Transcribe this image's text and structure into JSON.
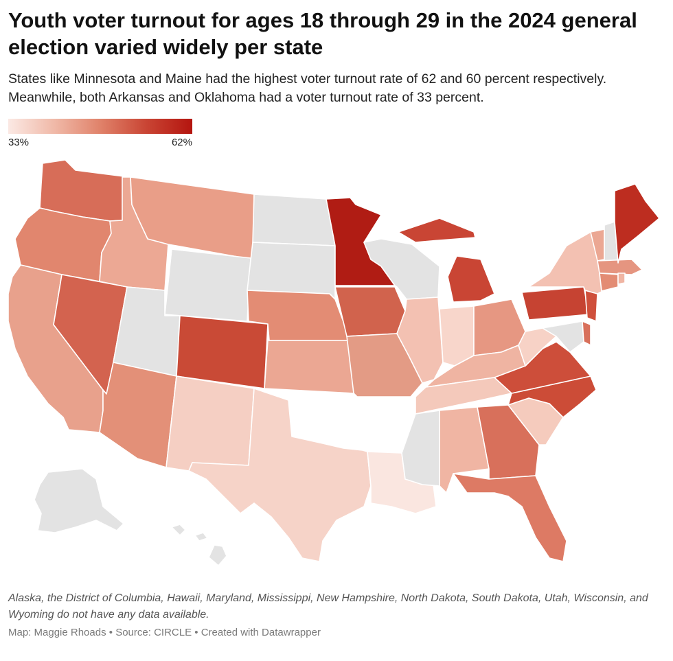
{
  "title": "Youth voter turnout for ages 18 through 29 in the 2024 general election varied widely per state",
  "subtitle": "States like Minnesota and Maine had the highest voter turnout rate of 62 and 60 percent respectively. Meanwhile, both Arkansas and Oklahoma had a voter turnout rate of 33 percent.",
  "legend": {
    "min_label": "33%",
    "max_label": "62%",
    "min_value": 33,
    "max_value": 62,
    "color_low": "#fbe9e4",
    "color_high": "#b4150f"
  },
  "no_data_color": "#e3e3e3",
  "note": "Alaska, the District of Columbia, Hawaii, Maryland, Mississippi, New Hampshire, North Dakota, South Dakota, Utah, Wisconsin, and Wyoming do not have any data available.",
  "credit": {
    "map_by": "Map: Maggie Rhoads",
    "source": "Source: CIRCLE",
    "tool": "Created with Datawrapper",
    "separator": "•"
  }
}
